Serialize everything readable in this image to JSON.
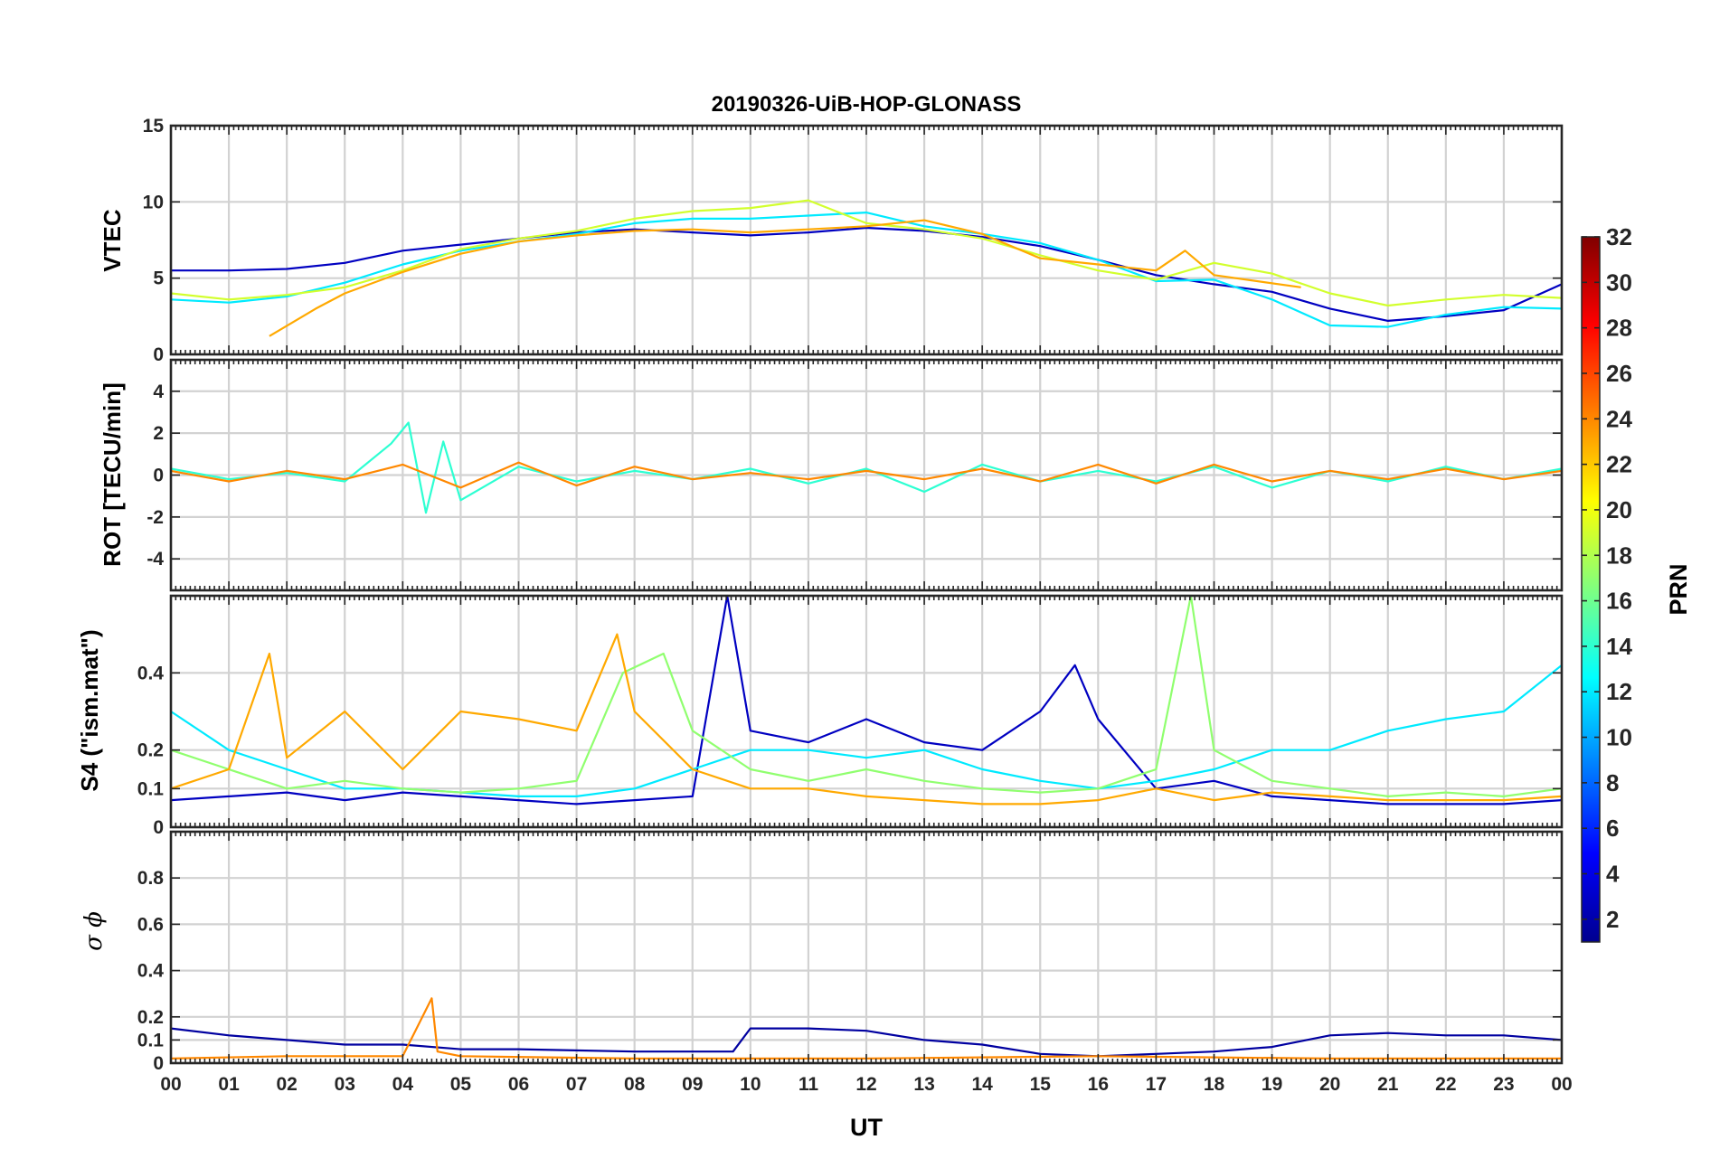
{
  "chart_data": {
    "type": "line",
    "title": "20190326-UiB-HOP-GLONASS",
    "xlabel": "UT",
    "x_range": [
      0,
      24
    ],
    "x_tick_labels": [
      "00",
      "01",
      "02",
      "03",
      "04",
      "05",
      "06",
      "07",
      "08",
      "09",
      "10",
      "11",
      "12",
      "13",
      "14",
      "15",
      "16",
      "17",
      "18",
      "19",
      "20",
      "21",
      "22",
      "23",
      "00"
    ],
    "panels": [
      {
        "id": "vtec",
        "ylabel": "VTEC",
        "ylim": [
          0,
          15
        ],
        "y_ticks": [
          0,
          5,
          10,
          15
        ],
        "y_tick_labels": [
          "0",
          "5",
          "10",
          "15"
        ],
        "description_series": [
          {
            "prn": 3,
            "x": [
              0,
              1,
              2,
              3,
              4,
              5,
              6,
              7,
              8,
              9,
              10,
              11,
              12,
              13,
              14,
              15,
              16,
              17,
              18,
              19,
              20,
              21,
              22,
              23,
              24
            ],
            "y": [
              5.5,
              5.5,
              5.6,
              6.0,
              6.8,
              7.2,
              7.6,
              8.0,
              8.2,
              8.0,
              7.8,
              8.0,
              8.3,
              8.1,
              7.7,
              7.1,
              6.2,
              5.2,
              4.6,
              4.1,
              3.0,
              2.2,
              2.5,
              2.9,
              4.6
            ]
          },
          {
            "prn": 12,
            "x": [
              0,
              1,
              2,
              3,
              4,
              5,
              6,
              7,
              8,
              9,
              10,
              11,
              12,
              13,
              14,
              15,
              16,
              17,
              18,
              19,
              20,
              21,
              22,
              23,
              24
            ],
            "y": [
              3.6,
              3.4,
              3.8,
              4.7,
              5.9,
              6.8,
              7.4,
              7.9,
              8.6,
              8.9,
              8.9,
              9.1,
              9.3,
              8.4,
              7.9,
              7.3,
              6.2,
              4.8,
              4.9,
              3.6,
              1.9,
              1.8,
              2.6,
              3.1,
              3.0
            ]
          },
          {
            "prn": 19,
            "x": [
              0,
              1,
              2,
              3,
              4,
              5,
              6,
              7,
              8,
              9,
              10,
              11,
              12,
              13,
              14,
              15,
              16,
              17,
              18,
              19,
              20,
              21,
              22,
              23,
              24
            ],
            "y": [
              4.0,
              3.6,
              3.9,
              4.4,
              5.5,
              6.9,
              7.6,
              8.1,
              8.9,
              9.4,
              9.6,
              10.1,
              8.6,
              8.2,
              7.6,
              6.5,
              5.5,
              4.9,
              6.0,
              5.3,
              4.0,
              3.2,
              3.6,
              3.9,
              3.7
            ]
          },
          {
            "prn": 23,
            "x": [
              1.7,
              2.5,
              3.0,
              4.0,
              5.0,
              6.0,
              7.0,
              8.0,
              9.0,
              10.0,
              11.0,
              12.0,
              13.0,
              14.0,
              15.0,
              16.0,
              17.0,
              17.5,
              18.0,
              19.5
            ],
            "y": [
              1.2,
              3.0,
              4.0,
              5.4,
              6.6,
              7.4,
              7.8,
              8.1,
              8.2,
              8.0,
              8.2,
              8.4,
              8.8,
              7.9,
              6.3,
              5.9,
              5.5,
              6.8,
              5.2,
              4.4
            ]
          }
        ]
      },
      {
        "id": "rot",
        "ylabel": "ROT [TECU/min]",
        "ylim": [
          -5.5,
          5.5
        ],
        "y_ticks": [
          -4,
          -2,
          0,
          2,
          4
        ],
        "y_tick_labels": [
          "-4",
          "-2",
          "0",
          "2",
          "4"
        ],
        "description_series": [
          {
            "prn": 14,
            "x": [
              0,
              1,
              2,
              3,
              3.8,
              4.1,
              4.4,
              4.7,
              5,
              6,
              7,
              8,
              9,
              10,
              11,
              12,
              13,
              14,
              15,
              16,
              17,
              18,
              19,
              20,
              21,
              22,
              23,
              24
            ],
            "y": [
              0.3,
              -0.2,
              0.1,
              -0.3,
              1.5,
              2.5,
              -1.8,
              1.6,
              -1.2,
              0.4,
              -0.3,
              0.2,
              -0.2,
              0.3,
              -0.4,
              0.3,
              -0.8,
              0.5,
              -0.3,
              0.2,
              -0.3,
              0.4,
              -0.6,
              0.2,
              -0.3,
              0.4,
              -0.2,
              0.3
            ]
          },
          {
            "prn": 24,
            "x": [
              0,
              1,
              2,
              3,
              4,
              5,
              6,
              7,
              8,
              9,
              10,
              11,
              12,
              13,
              14,
              15,
              16,
              17,
              18,
              19,
              20,
              21,
              22,
              23,
              24
            ],
            "y": [
              0.2,
              -0.3,
              0.2,
              -0.2,
              0.5,
              -0.6,
              0.6,
              -0.5,
              0.4,
              -0.2,
              0.1,
              -0.2,
              0.2,
              -0.2,
              0.3,
              -0.3,
              0.5,
              -0.4,
              0.5,
              -0.3,
              0.2,
              -0.2,
              0.3,
              -0.2,
              0.2
            ]
          }
        ]
      },
      {
        "id": "s4",
        "ylabel": "S4 (\"ism.mat\")",
        "ylim": [
          0,
          0.6
        ],
        "y_ticks": [
          0,
          0.1,
          0.2,
          0.4
        ],
        "y_tick_labels": [
          "0",
          "0.1",
          "0.2",
          "0.4"
        ],
        "description_series": [
          {
            "prn": 3,
            "x": [
              0,
              1,
              2,
              3,
              4,
              5,
              6,
              7,
              8,
              9,
              9.6,
              10,
              11,
              12,
              13,
              14,
              15,
              15.6,
              16,
              17,
              18,
              19,
              20,
              21,
              22,
              23,
              24
            ],
            "y": [
              0.07,
              0.08,
              0.09,
              0.07,
              0.09,
              0.08,
              0.07,
              0.06,
              0.07,
              0.08,
              0.6,
              0.25,
              0.22,
              0.28,
              0.22,
              0.2,
              0.3,
              0.42,
              0.28,
              0.1,
              0.12,
              0.08,
              0.07,
              0.06,
              0.06,
              0.06,
              0.07
            ]
          },
          {
            "prn": 12,
            "x": [
              0,
              1,
              2,
              3,
              4,
              5,
              6,
              7,
              8,
              9,
              10,
              11,
              12,
              13,
              14,
              15,
              16,
              17,
              18,
              19,
              20,
              21,
              22,
              23,
              24
            ],
            "y": [
              0.3,
              0.2,
              0.15,
              0.1,
              0.1,
              0.09,
              0.08,
              0.08,
              0.1,
              0.15,
              0.2,
              0.2,
              0.18,
              0.2,
              0.15,
              0.12,
              0.1,
              0.12,
              0.15,
              0.2,
              0.2,
              0.25,
              0.28,
              0.3,
              0.42
            ]
          },
          {
            "prn": 17,
            "x": [
              0,
              1,
              2,
              3,
              4,
              5,
              6,
              7,
              7.8,
              8.5,
              9,
              10,
              11,
              12,
              13,
              14,
              15,
              16,
              17,
              17.6,
              18,
              19,
              20,
              21,
              22,
              23,
              24
            ],
            "y": [
              0.2,
              0.15,
              0.1,
              0.12,
              0.1,
              0.09,
              0.1,
              0.12,
              0.4,
              0.45,
              0.25,
              0.15,
              0.12,
              0.15,
              0.12,
              0.1,
              0.09,
              0.1,
              0.15,
              0.6,
              0.2,
              0.12,
              0.1,
              0.08,
              0.09,
              0.08,
              0.1
            ]
          },
          {
            "prn": 23,
            "x": [
              0,
              1,
              1.7,
              2,
              3,
              4,
              5,
              6,
              7,
              7.7,
              8,
              9,
              10,
              11,
              12,
              13,
              14,
              15,
              16,
              17,
              18,
              19,
              20,
              21,
              22,
              23,
              24
            ],
            "y": [
              0.1,
              0.15,
              0.45,
              0.18,
              0.3,
              0.15,
              0.3,
              0.28,
              0.25,
              0.5,
              0.3,
              0.15,
              0.1,
              0.1,
              0.08,
              0.07,
              0.06,
              0.06,
              0.07,
              0.1,
              0.07,
              0.09,
              0.08,
              0.07,
              0.07,
              0.07,
              0.08
            ]
          }
        ]
      },
      {
        "id": "sigma_phi",
        "ylabel": "σ ϕ",
        "ylim": [
          0,
          1.0
        ],
        "y_ticks": [
          0,
          0.1,
          0.2,
          0.4,
          0.6,
          0.8
        ],
        "y_tick_labels": [
          "0",
          "0.1",
          "0.2",
          "0.4",
          "0.6",
          "0.8"
        ],
        "description_series": [
          {
            "prn": 2,
            "x": [
              0,
              1,
              2,
              3,
              4,
              5,
              6,
              8,
              9,
              9.7,
              10,
              11,
              12,
              13,
              14,
              15,
              16,
              17,
              18,
              19,
              20,
              21,
              22,
              23,
              24
            ],
            "y": [
              0.15,
              0.12,
              0.1,
              0.08,
              0.08,
              0.06,
              0.06,
              0.05,
              0.05,
              0.05,
              0.15,
              0.15,
              0.14,
              0.1,
              0.08,
              0.04,
              0.03,
              0.04,
              0.05,
              0.07,
              0.12,
              0.13,
              0.12,
              0.12,
              0.1
            ]
          },
          {
            "prn": 24,
            "x": [
              0,
              2,
              4,
              4.5,
              4.6,
              5,
              8,
              12,
              16,
              20,
              24
            ],
            "y": [
              0.02,
              0.03,
              0.03,
              0.28,
              0.05,
              0.03,
              0.02,
              0.02,
              0.03,
              0.02,
              0.02
            ]
          }
        ]
      }
    ],
    "colorbar": {
      "label": "PRN",
      "range": [
        1,
        32
      ],
      "colormap": "jet",
      "tick_labels": [
        "2",
        "4",
        "6",
        "8",
        "10",
        "12",
        "14",
        "16",
        "18",
        "20",
        "22",
        "24",
        "26",
        "28",
        "30",
        "32"
      ]
    }
  }
}
